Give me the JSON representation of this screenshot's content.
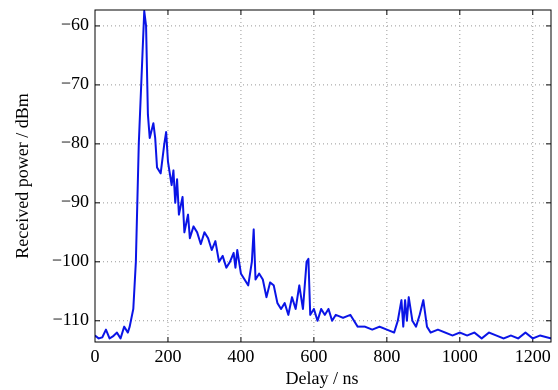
{
  "chart_data": {
    "type": "line",
    "xlabel": "Delay / ns",
    "ylabel": "Received power / dBm",
    "x": [
      0,
      10,
      20,
      30,
      40,
      50,
      60,
      70,
      80,
      90,
      95,
      105,
      112,
      120,
      130,
      135,
      140,
      145,
      150,
      160,
      165,
      170,
      180,
      190,
      195,
      200,
      210,
      215,
      220,
      225,
      230,
      240,
      245,
      255,
      260,
      270,
      280,
      290,
      300,
      310,
      320,
      330,
      340,
      350,
      360,
      370,
      380,
      385,
      390,
      400,
      410,
      420,
      430,
      435,
      440,
      450,
      460,
      470,
      480,
      490,
      500,
      510,
      520,
      530,
      540,
      550,
      560,
      570,
      580,
      585,
      590,
      600,
      610,
      620,
      630,
      640,
      650,
      660,
      680,
      700,
      720,
      740,
      760,
      780,
      800,
      820,
      830,
      840,
      845,
      850,
      855,
      860,
      870,
      880,
      890,
      900,
      910,
      920,
      940,
      960,
      980,
      1000,
      1020,
      1040,
      1060,
      1080,
      1100,
      1120,
      1140,
      1160,
      1180,
      1200,
      1220,
      1250
    ],
    "series": [
      {
        "name": "Received power",
        "color": "#0a14e6",
        "values": [
          -112.5,
          -113,
          -112.8,
          -111.5,
          -113,
          -112.6,
          -112,
          -113,
          -111,
          -112,
          -111,
          -108,
          -100,
          -80,
          -65,
          -57.5,
          -60,
          -75,
          -79,
          -76.5,
          -79,
          -84,
          -85,
          -80,
          -78,
          -83,
          -87,
          -84.5,
          -90,
          -86,
          -92,
          -89,
          -95,
          -92,
          -96,
          -94,
          -95,
          -97,
          -95,
          -96,
          -98,
          -96.5,
          -100,
          -99,
          -101,
          -100,
          -98.5,
          -101,
          -98,
          -102,
          -103,
          -104,
          -100,
          -94.5,
          -103,
          -102,
          -103,
          -106,
          -103.5,
          -104,
          -107,
          -108,
          -107,
          -109,
          -106,
          -108,
          -104,
          -108,
          -100,
          -99.5,
          -109,
          -108,
          -110,
          -108,
          -109,
          -108,
          -110,
          -109,
          -109.5,
          -109,
          -111,
          -111,
          -111.5,
          -111,
          -111.5,
          -112,
          -110,
          -106.5,
          -111,
          -106.5,
          -110,
          -106,
          -110,
          -111,
          -109,
          -106.5,
          -111,
          -112,
          -111.5,
          -112,
          -112.5,
          -112,
          -112.5,
          -112,
          -113,
          -112,
          -112.5,
          -113,
          -112.5,
          -113,
          -112,
          -113,
          -112.5,
          -113
        ]
      }
    ],
    "xlim": [
      0,
      1250
    ],
    "xticks": [
      0,
      200,
      400,
      600,
      800,
      1000,
      1200
    ],
    "ylim": [
      -113.6,
      -57.3
    ],
    "yticks": [
      {
        "value": -110,
        "label": "−110"
      },
      {
        "value": -100,
        "label": "−100"
      },
      {
        "value": -90,
        "label": "−90"
      },
      {
        "value": -80,
        "label": "−80"
      },
      {
        "value": -70,
        "label": "−70"
      },
      {
        "value": -60,
        "label": "−60"
      }
    ],
    "grid": true
  }
}
